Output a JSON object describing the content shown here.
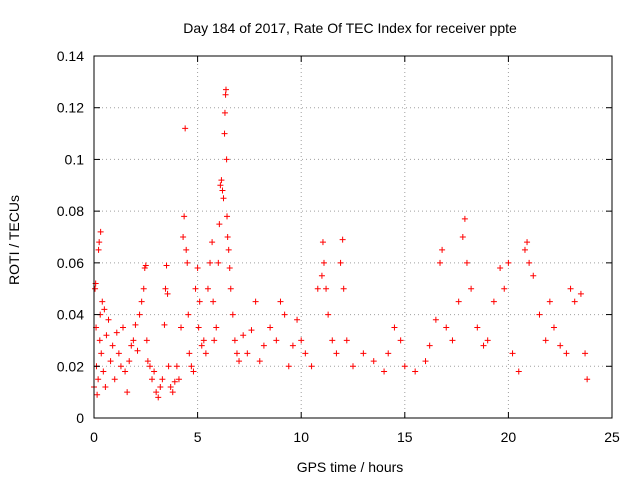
{
  "chart_data": {
    "type": "scatter",
    "title": "Day 184 of 2017, Rate Of TEC Index for receiver ppte",
    "xlabel": "GPS time / hours",
    "ylabel": "ROTI / TECUs",
    "xlim": [
      0,
      25
    ],
    "ylim": [
      0,
      0.14
    ],
    "xticks": [
      0,
      5,
      10,
      15,
      20,
      25
    ],
    "xtick_labels": [
      "0",
      "5",
      "10",
      "15",
      "20",
      "25"
    ],
    "yticks": [
      0,
      0.02,
      0.04,
      0.06,
      0.08,
      0.1,
      0.12,
      0.14
    ],
    "ytick_labels": [
      "0",
      "0.02",
      "0.04",
      "0.06",
      "0.08",
      "0.1",
      "0.12",
      "0.14"
    ],
    "grid": true,
    "marker": "+",
    "color": "#ff0000",
    "series": [
      {
        "name": "ROTI",
        "points": [
          [
            0.0,
            0.012
          ],
          [
            0.05,
            0.05
          ],
          [
            0.08,
            0.052
          ],
          [
            0.1,
            0.035
          ],
          [
            0.12,
            0.02
          ],
          [
            0.15,
            0.009
          ],
          [
            0.2,
            0.015
          ],
          [
            0.22,
            0.065
          ],
          [
            0.25,
            0.068
          ],
          [
            0.28,
            0.03
          ],
          [
            0.3,
            0.04
          ],
          [
            0.32,
            0.072
          ],
          [
            0.35,
            0.025
          ],
          [
            0.4,
            0.045
          ],
          [
            0.45,
            0.018
          ],
          [
            0.5,
            0.042
          ],
          [
            0.55,
            0.012
          ],
          [
            0.6,
            0.032
          ],
          [
            0.7,
            0.038
          ],
          [
            0.8,
            0.022
          ],
          [
            0.9,
            0.028
          ],
          [
            1.0,
            0.015
          ],
          [
            1.1,
            0.033
          ],
          [
            1.2,
            0.025
          ],
          [
            1.3,
            0.02
          ],
          [
            1.4,
            0.035
          ],
          [
            1.5,
            0.018
          ],
          [
            1.6,
            0.01
          ],
          [
            1.7,
            0.022
          ],
          [
            1.8,
            0.028
          ],
          [
            1.9,
            0.03
          ],
          [
            2.0,
            0.036
          ],
          [
            2.1,
            0.026
          ],
          [
            2.2,
            0.04
          ],
          [
            2.3,
            0.045
          ],
          [
            2.4,
            0.05
          ],
          [
            2.45,
            0.058
          ],
          [
            2.5,
            0.059
          ],
          [
            2.55,
            0.03
          ],
          [
            2.6,
            0.022
          ],
          [
            2.7,
            0.02
          ],
          [
            2.8,
            0.015
          ],
          [
            2.9,
            0.018
          ],
          [
            3.0,
            0.01
          ],
          [
            3.1,
            0.008
          ],
          [
            3.2,
            0.012
          ],
          [
            3.3,
            0.015
          ],
          [
            3.4,
            0.036
          ],
          [
            3.45,
            0.05
          ],
          [
            3.5,
            0.059
          ],
          [
            3.55,
            0.048
          ],
          [
            3.6,
            0.02
          ],
          [
            3.7,
            0.012
          ],
          [
            3.8,
            0.01
          ],
          [
            3.9,
            0.014
          ],
          [
            4.0,
            0.02
          ],
          [
            4.1,
            0.015
          ],
          [
            4.2,
            0.035
          ],
          [
            4.3,
            0.07
          ],
          [
            4.35,
            0.078
          ],
          [
            4.4,
            0.112
          ],
          [
            4.45,
            0.065
          ],
          [
            4.5,
            0.06
          ],
          [
            4.55,
            0.04
          ],
          [
            4.6,
            0.025
          ],
          [
            4.7,
            0.02
          ],
          [
            4.8,
            0.018
          ],
          [
            4.9,
            0.05
          ],
          [
            5.0,
            0.058
          ],
          [
            5.05,
            0.035
          ],
          [
            5.1,
            0.045
          ],
          [
            5.2,
            0.028
          ],
          [
            5.3,
            0.03
          ],
          [
            5.4,
            0.025
          ],
          [
            5.5,
            0.05
          ],
          [
            5.6,
            0.06
          ],
          [
            5.7,
            0.068
          ],
          [
            5.75,
            0.045
          ],
          [
            5.8,
            0.03
          ],
          [
            5.9,
            0.035
          ],
          [
            6.0,
            0.06
          ],
          [
            6.05,
            0.075
          ],
          [
            6.1,
            0.09
          ],
          [
            6.15,
            0.092
          ],
          [
            6.2,
            0.088
          ],
          [
            6.25,
            0.085
          ],
          [
            6.3,
            0.11
          ],
          [
            6.32,
            0.118
          ],
          [
            6.35,
            0.125
          ],
          [
            6.37,
            0.127
          ],
          [
            6.4,
            0.1
          ],
          [
            6.42,
            0.078
          ],
          [
            6.45,
            0.07
          ],
          [
            6.5,
            0.065
          ],
          [
            6.55,
            0.058
          ],
          [
            6.6,
            0.05
          ],
          [
            6.7,
            0.04
          ],
          [
            6.8,
            0.03
          ],
          [
            6.9,
            0.025
          ],
          [
            7.0,
            0.022
          ],
          [
            7.2,
            0.032
          ],
          [
            7.4,
            0.025
          ],
          [
            7.6,
            0.034
          ],
          [
            7.8,
            0.045
          ],
          [
            8.0,
            0.022
          ],
          [
            8.2,
            0.028
          ],
          [
            8.5,
            0.035
          ],
          [
            8.8,
            0.03
          ],
          [
            9.0,
            0.045
          ],
          [
            9.2,
            0.04
          ],
          [
            9.4,
            0.02
          ],
          [
            9.6,
            0.028
          ],
          [
            9.8,
            0.038
          ],
          [
            10.0,
            0.03
          ],
          [
            10.2,
            0.025
          ],
          [
            10.5,
            0.02
          ],
          [
            10.8,
            0.05
          ],
          [
            11.0,
            0.055
          ],
          [
            11.05,
            0.068
          ],
          [
            11.1,
            0.06
          ],
          [
            11.2,
            0.05
          ],
          [
            11.3,
            0.04
          ],
          [
            11.5,
            0.03
          ],
          [
            11.7,
            0.025
          ],
          [
            11.9,
            0.06
          ],
          [
            12.0,
            0.069
          ],
          [
            12.05,
            0.05
          ],
          [
            12.2,
            0.03
          ],
          [
            12.5,
            0.02
          ],
          [
            13.0,
            0.025
          ],
          [
            13.5,
            0.022
          ],
          [
            14.0,
            0.018
          ],
          [
            14.2,
            0.025
          ],
          [
            14.5,
            0.035
          ],
          [
            14.8,
            0.03
          ],
          [
            15.0,
            0.02
          ],
          [
            15.5,
            0.018
          ],
          [
            16.0,
            0.022
          ],
          [
            16.2,
            0.028
          ],
          [
            16.5,
            0.038
          ],
          [
            16.7,
            0.06
          ],
          [
            16.8,
            0.065
          ],
          [
            17.0,
            0.035
          ],
          [
            17.3,
            0.03
          ],
          [
            17.6,
            0.045
          ],
          [
            17.8,
            0.07
          ],
          [
            17.9,
            0.077
          ],
          [
            18.0,
            0.06
          ],
          [
            18.2,
            0.05
          ],
          [
            18.5,
            0.035
          ],
          [
            18.8,
            0.028
          ],
          [
            19.0,
            0.03
          ],
          [
            19.3,
            0.045
          ],
          [
            19.6,
            0.058
          ],
          [
            19.8,
            0.05
          ],
          [
            20.0,
            0.06
          ],
          [
            20.2,
            0.025
          ],
          [
            20.5,
            0.018
          ],
          [
            20.8,
            0.065
          ],
          [
            20.9,
            0.068
          ],
          [
            21.0,
            0.06
          ],
          [
            21.2,
            0.055
          ],
          [
            21.5,
            0.04
          ],
          [
            21.8,
            0.03
          ],
          [
            22.0,
            0.045
          ],
          [
            22.2,
            0.035
          ],
          [
            22.5,
            0.028
          ],
          [
            22.8,
            0.025
          ],
          [
            23.0,
            0.05
          ],
          [
            23.2,
            0.045
          ],
          [
            23.5,
            0.048
          ],
          [
            23.7,
            0.025
          ],
          [
            23.8,
            0.015
          ]
        ]
      }
    ]
  }
}
